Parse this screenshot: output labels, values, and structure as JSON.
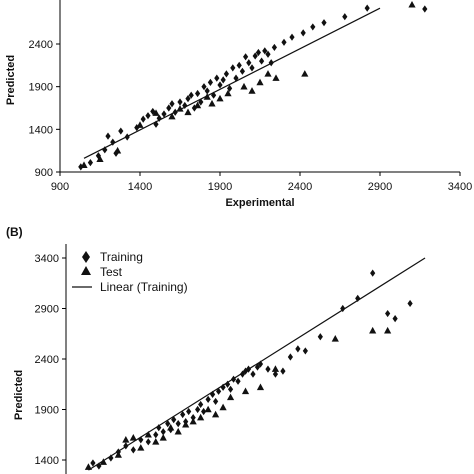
{
  "chart_data": [
    {
      "panel": "",
      "type": "scatter",
      "xlabel": "Experimental",
      "ylabel": "Predicted",
      "xlim": [
        900,
        3400
      ],
      "ylim": [
        900,
        2900
      ],
      "xticks": [
        900,
        1400,
        1900,
        2400,
        2900,
        3400
      ],
      "yticks": [
        900,
        1400,
        1900,
        2400
      ],
      "trendline": {
        "x": [
          1050,
          2900
        ],
        "y": [
          1060,
          2820
        ]
      },
      "series": [
        {
          "name": "",
          "marker": "diamond",
          "points": [
            [
              1030,
              960
            ],
            [
              1090,
              1010
            ],
            [
              1140,
              1090
            ],
            [
              1180,
              1160
            ],
            [
              1200,
              1320
            ],
            [
              1230,
              1250
            ],
            [
              1250,
              1120
            ],
            [
              1280,
              1380
            ],
            [
              1320,
              1310
            ],
            [
              1380,
              1420
            ],
            [
              1420,
              1520
            ],
            [
              1450,
              1560
            ],
            [
              1480,
              1610
            ],
            [
              1500,
              1460
            ],
            [
              1520,
              1530
            ],
            [
              1550,
              1580
            ],
            [
              1580,
              1650
            ],
            [
              1600,
              1700
            ],
            [
              1620,
              1600
            ],
            [
              1650,
              1720
            ],
            [
              1680,
              1680
            ],
            [
              1700,
              1760
            ],
            [
              1720,
              1800
            ],
            [
              1740,
              1650
            ],
            [
              1760,
              1820
            ],
            [
              1780,
              1720
            ],
            [
              1800,
              1900
            ],
            [
              1820,
              1850
            ],
            [
              1840,
              1950
            ],
            [
              1860,
              1800
            ],
            [
              1880,
              2000
            ],
            [
              1900,
              1920
            ],
            [
              1920,
              1980
            ],
            [
              1940,
              2050
            ],
            [
              1960,
              1880
            ],
            [
              1980,
              2120
            ],
            [
              2000,
              2000
            ],
            [
              2020,
              2150
            ],
            [
              2040,
              2080
            ],
            [
              2060,
              2250
            ],
            [
              2080,
              2180
            ],
            [
              2100,
              2120
            ],
            [
              2120,
              2260
            ],
            [
              2140,
              2300
            ],
            [
              2160,
              2200
            ],
            [
              2180,
              2320
            ],
            [
              2200,
              2280
            ],
            [
              2220,
              2180
            ],
            [
              2240,
              2360
            ],
            [
              2300,
              2420
            ],
            [
              2350,
              2480
            ],
            [
              2420,
              2530
            ],
            [
              2480,
              2600
            ],
            [
              2550,
              2650
            ],
            [
              2680,
              2720
            ],
            [
              2820,
              2820
            ],
            [
              3180,
              2810
            ]
          ]
        },
        {
          "name": "",
          "marker": "triangle",
          "points": [
            [
              1050,
              980
            ],
            [
              1150,
              1050
            ],
            [
              1260,
              1150
            ],
            [
              1400,
              1450
            ],
            [
              1500,
              1590
            ],
            [
              1600,
              1550
            ],
            [
              1650,
              1640
            ],
            [
              1700,
              1600
            ],
            [
              1760,
              1680
            ],
            [
              1820,
              1780
            ],
            [
              1850,
              1700
            ],
            [
              1900,
              1760
            ],
            [
              1950,
              1820
            ],
            [
              2050,
              1900
            ],
            [
              2100,
              1850
            ],
            [
              2150,
              1950
            ],
            [
              2200,
              2050
            ],
            [
              2250,
              2000
            ],
            [
              2430,
              2050
            ],
            [
              3100,
              2860
            ]
          ]
        }
      ]
    },
    {
      "panel": "(B)",
      "type": "scatter",
      "xlabel": "",
      "ylabel": "Predicted",
      "xlim": [
        900,
        3400
      ],
      "ylim": [
        1300,
        3500
      ],
      "yticks": [
        1400,
        1900,
        2400,
        2900,
        3400
      ],
      "legend_position": "top-left",
      "trendline": {
        "name": "Linear (Training)",
        "x": [
          1050,
          3300
        ],
        "y": [
          1300,
          3400
        ]
      },
      "series": [
        {
          "name": "Training",
          "marker": "diamond",
          "points": [
            [
              1080,
              1370
            ],
            [
              1120,
              1340
            ],
            [
              1200,
              1420
            ],
            [
              1250,
              1480
            ],
            [
              1300,
              1540
            ],
            [
              1350,
              1500
            ],
            [
              1400,
              1600
            ],
            [
              1450,
              1580
            ],
            [
              1500,
              1650
            ],
            [
              1520,
              1720
            ],
            [
              1550,
              1680
            ],
            [
              1580,
              1760
            ],
            [
              1600,
              1700
            ],
            [
              1620,
              1800
            ],
            [
              1650,
              1760
            ],
            [
              1680,
              1850
            ],
            [
              1700,
              1780
            ],
            [
              1720,
              1880
            ],
            [
              1750,
              1820
            ],
            [
              1780,
              1900
            ],
            [
              1800,
              1950
            ],
            [
              1820,
              1880
            ],
            [
              1850,
              2000
            ],
            [
              1880,
              2050
            ],
            [
              1900,
              1980
            ],
            [
              1920,
              2080
            ],
            [
              1950,
              2120
            ],
            [
              1980,
              2150
            ],
            [
              2000,
              2100
            ],
            [
              2020,
              2200
            ],
            [
              2050,
              2180
            ],
            [
              2080,
              2250
            ],
            [
              2100,
              2280
            ],
            [
              2120,
              2300
            ],
            [
              2150,
              2250
            ],
            [
              2180,
              2320
            ],
            [
              2200,
              2350
            ],
            [
              2250,
              2300
            ],
            [
              2300,
              2250
            ],
            [
              2350,
              2280
            ],
            [
              2400,
              2420
            ],
            [
              2450,
              2500
            ],
            [
              2500,
              2480
            ],
            [
              2600,
              2620
            ],
            [
              2750,
              2900
            ],
            [
              2850,
              3000
            ],
            [
              2950,
              3250
            ],
            [
              3050,
              2850
            ],
            [
              3100,
              2800
            ],
            [
              3200,
              2950
            ]
          ]
        },
        {
          "name": "Test",
          "marker": "triangle",
          "points": [
            [
              1050,
              1330
            ],
            [
              1150,
              1380
            ],
            [
              1250,
              1450
            ],
            [
              1300,
              1600
            ],
            [
              1350,
              1620
            ],
            [
              1400,
              1520
            ],
            [
              1450,
              1650
            ],
            [
              1500,
              1580
            ],
            [
              1550,
              1620
            ],
            [
              1600,
              1720
            ],
            [
              1650,
              1680
            ],
            [
              1700,
              1750
            ],
            [
              1750,
              1780
            ],
            [
              1800,
              1820
            ],
            [
              1850,
              1900
            ],
            [
              1900,
              1850
            ],
            [
              1950,
              1920
            ],
            [
              2000,
              2020
            ],
            [
              2100,
              2080
            ],
            [
              2200,
              2120
            ],
            [
              2300,
              2300
            ],
            [
              2700,
              2600
            ],
            [
              2950,
              2680
            ],
            [
              3050,
              2680
            ]
          ]
        }
      ]
    }
  ]
}
